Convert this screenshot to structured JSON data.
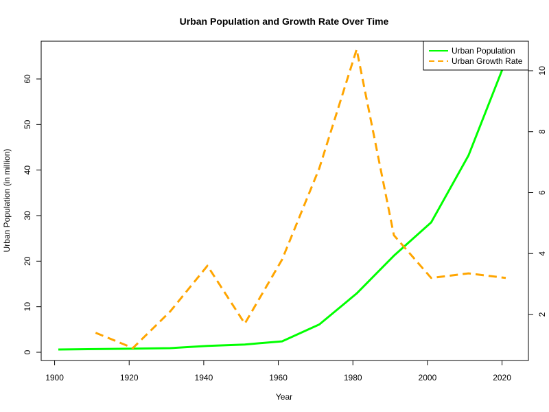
{
  "chart_data": {
    "type": "line",
    "title": "Urban Population and Growth Rate Over Time",
    "xlabel": "Year",
    "ylabel": "Urban Population (in million)",
    "y2label": "",
    "xlim": [
      1901,
      2021
    ],
    "ylim": [
      0,
      64
    ],
    "y2lim": [
      1,
      10.6
    ],
    "xticks": [
      1900,
      1920,
      1940,
      1960,
      1980,
      2000,
      2020
    ],
    "yticks": [
      0,
      10,
      20,
      30,
      40,
      50,
      60
    ],
    "y2ticks": [
      2,
      4,
      6,
      8,
      10
    ],
    "grid": false,
    "legend_position": "top-right",
    "series": [
      {
        "name": "Urban Population",
        "axis": "left",
        "color": "#00ff00",
        "style": "solid",
        "x": [
          1901,
          1911,
          1921,
          1931,
          1941,
          1951,
          1961,
          1971,
          1981,
          1991,
          2001,
          2011,
          2021
        ],
        "values": [
          0.6,
          0.7,
          0.8,
          0.9,
          1.4,
          1.7,
          2.4,
          6.1,
          12.9,
          21.2,
          28.5,
          43.2,
          64.0
        ]
      },
      {
        "name": "Urban Growth Rate",
        "axis": "right",
        "color": "#ffa500",
        "style": "dashed",
        "x": [
          1911,
          1921,
          1931,
          1941,
          1951,
          1961,
          1971,
          1981,
          1991,
          2001,
          2011,
          2021
        ],
        "values": [
          1.4,
          0.9,
          2.1,
          3.6,
          1.7,
          3.8,
          6.8,
          10.7,
          4.6,
          3.2,
          3.35,
          3.2
        ]
      }
    ]
  }
}
